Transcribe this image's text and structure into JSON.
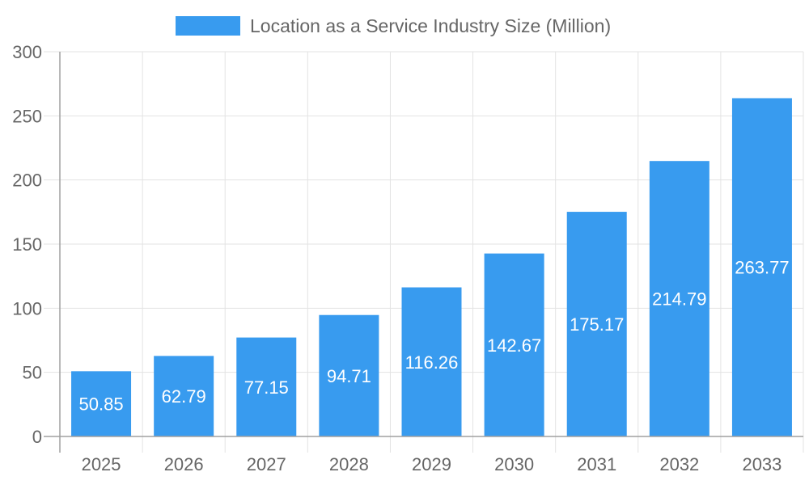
{
  "chart_data": {
    "type": "bar",
    "title": "",
    "xlabel": "",
    "ylabel": "",
    "categories": [
      "2025",
      "2026",
      "2027",
      "2028",
      "2029",
      "2030",
      "2031",
      "2032",
      "2033"
    ],
    "series": [
      {
        "name": "Location as a Service Industry Size (Million)",
        "values": [
          50.85,
          62.79,
          77.15,
          94.71,
          116.26,
          142.67,
          175.17,
          214.79,
          263.77
        ]
      }
    ],
    "ylim": [
      0,
      300
    ],
    "yticks": [
      0,
      50,
      100,
      150,
      200,
      250,
      300
    ],
    "grid": true,
    "legend": "top-center",
    "data_labels": true,
    "colors": {
      "bar": "#389BEF",
      "grid": "#e3e3e3",
      "axis": "#a0a0a0",
      "text": "#666666",
      "label": "#ffffff"
    }
  }
}
